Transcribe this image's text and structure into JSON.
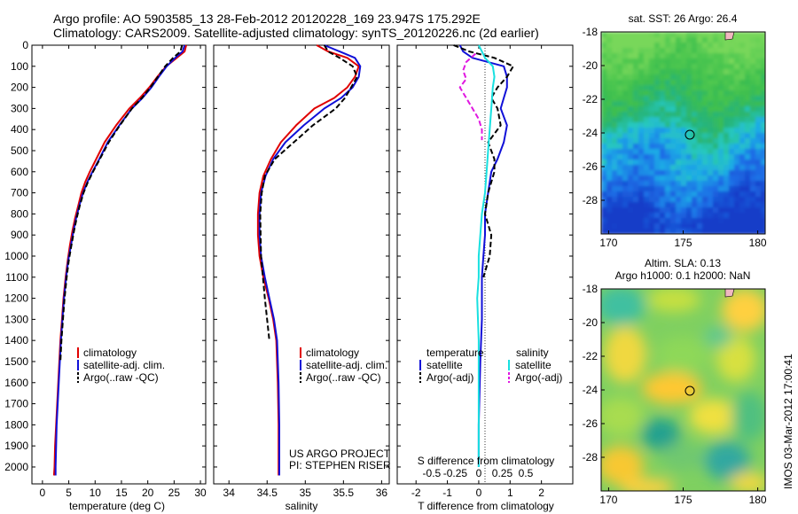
{
  "header": {
    "line1": "Argo profile: AO 5903585_13 28-Feb-2012 20120228_169 23.947S 175.292E",
    "line2": "Climatology: CARS2009. Satellite-adjusted climatology: synTS_20120226.nc (2d earlier)"
  },
  "credit": "US ARGO PROJECT",
  "pi": "PI: STEPHEN RISER",
  "watermark": "IMOS 03-Mar-2012 17:00:41",
  "colors": {
    "climatology": "#e00000",
    "satellite": "#1010d8",
    "argo": "#000000",
    "sat_salinity": "#18e0e0",
    "argo_salinity": "#e018e0"
  },
  "chart_data": [
    {
      "type": "line",
      "name": "temperature-profile",
      "xlabel": "temperature (deg C)",
      "ylabel": "depth",
      "xlim": [
        -2,
        31
      ],
      "ylim": [
        2080,
        0
      ],
      "xticks": [
        0,
        5,
        10,
        15,
        20,
        25,
        30
      ],
      "yticks": [
        0,
        100,
        200,
        300,
        400,
        500,
        600,
        700,
        800,
        900,
        1000,
        1100,
        1200,
        1300,
        1400,
        1500,
        1600,
        1700,
        1800,
        1900,
        2000
      ],
      "legend": [
        "climatology",
        "satellite-adj. clim.",
        "Argo(..raw -QC)"
      ],
      "series": [
        {
          "name": "climatology",
          "color": "#e00000",
          "dash": "",
          "x": [
            27.3,
            27.0,
            25.5,
            23.5,
            21.8,
            20.3,
            18.5,
            16.5,
            14.0,
            11.8,
            10.2,
            9.0,
            8.1,
            7.4,
            6.8,
            6.2,
            5.7,
            5.2,
            4.8,
            4.4,
            4.0,
            3.7,
            3.4,
            3.2,
            3.0,
            2.8,
            2.6,
            2.4,
            2.3,
            2.2
          ],
          "y": [
            0,
            30,
            60,
            100,
            150,
            200,
            250,
            300,
            380,
            460,
            540,
            600,
            650,
            700,
            760,
            820,
            880,
            950,
            1020,
            1100,
            1200,
            1300,
            1400,
            1500,
            1600,
            1700,
            1800,
            1900,
            2000,
            2040
          ]
        },
        {
          "name": "satellite-adj. clim.",
          "color": "#1010d8",
          "dash": "",
          "x": [
            27.0,
            26.6,
            25.2,
            23.6,
            22.1,
            20.7,
            19.0,
            17.0,
            14.6,
            12.4,
            10.8,
            9.5,
            8.5,
            7.7,
            7.0,
            6.4,
            5.9,
            5.4,
            4.9,
            4.5,
            4.1,
            3.8,
            3.5,
            3.3,
            3.1,
            2.9,
            2.7,
            2.6,
            2.5,
            2.5
          ],
          "y": [
            0,
            30,
            60,
            100,
            150,
            200,
            250,
            300,
            380,
            460,
            540,
            600,
            650,
            700,
            760,
            820,
            880,
            950,
            1020,
            1100,
            1200,
            1300,
            1400,
            1500,
            1600,
            1700,
            1800,
            1900,
            2000,
            2040
          ]
        },
        {
          "name": "Argo(..raw -QC)",
          "color": "#000000",
          "dash": "6,3",
          "x": [
            26.5,
            26.2,
            24.8,
            23.3,
            21.9,
            20.5,
            18.9,
            17.0,
            14.7,
            12.6,
            10.9,
            9.6,
            8.6,
            7.8,
            7.1,
            6.5,
            6.0,
            5.5,
            5.0,
            4.6,
            4.2,
            3.9,
            3.6,
            3.4
          ],
          "y": [
            0,
            30,
            60,
            100,
            150,
            200,
            250,
            300,
            380,
            460,
            540,
            600,
            650,
            700,
            760,
            820,
            880,
            950,
            1020,
            1100,
            1200,
            1300,
            1400,
            1500
          ]
        }
      ]
    },
    {
      "type": "line",
      "name": "salinity-profile",
      "xlabel": "salinity",
      "ylabel": "depth",
      "xlim": [
        33.8,
        36.1
      ],
      "ylim": [
        2080,
        0
      ],
      "xticks": [
        34,
        34.5,
        35,
        35.5,
        36
      ],
      "legend": [
        "climatology",
        "satellite-adj. clim.",
        "Argo(..raw -QC)"
      ],
      "series": [
        {
          "name": "climatology",
          "color": "#e00000",
          "dash": "",
          "x": [
            35.15,
            35.3,
            35.55,
            35.7,
            35.65,
            35.55,
            35.38,
            35.12,
            34.88,
            34.68,
            34.55,
            34.45,
            34.4,
            34.38,
            34.38,
            34.4,
            34.45,
            34.52,
            34.58,
            34.62,
            34.64,
            34.65,
            34.65
          ],
          "y": [
            0,
            30,
            60,
            100,
            150,
            200,
            250,
            300,
            380,
            460,
            540,
            620,
            700,
            800,
            900,
            1000,
            1100,
            1200,
            1300,
            1400,
            1600,
            1800,
            2040
          ]
        },
        {
          "name": "satellite-adj. clim.",
          "color": "#1010d8",
          "dash": "",
          "x": [
            35.25,
            35.45,
            35.65,
            35.72,
            35.7,
            35.62,
            35.47,
            35.25,
            34.98,
            34.74,
            34.58,
            34.48,
            34.42,
            34.4,
            34.4,
            34.42,
            34.47,
            34.53,
            34.59,
            34.63,
            34.65,
            34.66,
            34.66
          ],
          "y": [
            0,
            30,
            60,
            100,
            150,
            200,
            250,
            300,
            380,
            460,
            540,
            620,
            700,
            800,
            900,
            1000,
            1100,
            1200,
            1300,
            1400,
            1600,
            1800,
            2040
          ]
        },
        {
          "name": "Argo(..raw -QC)",
          "color": "#000000",
          "dash": "6,3",
          "x": [
            35.25,
            35.3,
            35.45,
            35.62,
            35.68,
            35.6,
            35.52,
            35.4,
            35.1,
            34.85,
            34.6,
            34.47,
            34.43,
            34.41,
            34.42,
            34.47,
            34.53
          ],
          "y": [
            0,
            30,
            60,
            100,
            150,
            200,
            250,
            300,
            380,
            460,
            540,
            620,
            700,
            800,
            1000,
            1200,
            1400
          ]
        }
      ]
    },
    {
      "type": "line",
      "name": "difference-profile",
      "xlabel": "T difference from climatology",
      "xlabel_top": "S difference from climatology",
      "ylabel": "depth",
      "xlim": [
        -2.6,
        3.0
      ],
      "ylim": [
        2080,
        0
      ],
      "xticks": [
        -2,
        -1,
        0,
        1,
        2
      ],
      "xticks_top": [
        -0.5,
        -0.25,
        0,
        0.25,
        0.5
      ],
      "legend_headers": [
        "temperature",
        "salinity"
      ],
      "legend": [
        "satellite",
        "Argo(-adj)",
        "satellite",
        "Argo(-adj)"
      ],
      "series": [
        {
          "name": "temperature satellite",
          "color": "#1010d8",
          "dash": "",
          "x": [
            -0.6,
            -0.5,
            -0.2,
            0.8,
            0.9,
            0.9,
            0.8,
            0.7,
            0.9,
            0.8,
            0.6,
            0.4,
            0.3,
            0.2,
            0.2,
            0.15,
            0.1,
            0.1,
            0.05,
            0.0,
            0.0
          ],
          "y": [
            0,
            30,
            60,
            100,
            150,
            200,
            250,
            300,
            380,
            460,
            540,
            600,
            700,
            800,
            900,
            1000,
            1100,
            1300,
            1500,
            1800,
            2000
          ]
        },
        {
          "name": "temperature Argo(-adj)",
          "color": "#000000",
          "dash": "6,3",
          "x": [
            -0.8,
            -0.3,
            0.5,
            1.1,
            0.9,
            0.6,
            0.4,
            0.6,
            0.7,
            0.3,
            0.5,
            0.5,
            0.3,
            0.2,
            0.4,
            0.35,
            0.15
          ],
          "y": [
            0,
            30,
            60,
            100,
            150,
            200,
            250,
            300,
            380,
            460,
            540,
            600,
            700,
            800,
            900,
            1000,
            1100
          ]
        },
        {
          "name": "salinity satellite",
          "color": "#18e0e0",
          "dash": "",
          "x": [
            0.0,
            0.1,
            0.2,
            0.45,
            0.5,
            0.45,
            0.4,
            0.35,
            0.3,
            0.25,
            0.2,
            0.1,
            0.05,
            0.0,
            0.0,
            -0.05,
            0.0,
            0.0,
            0.0
          ],
          "y": [
            0,
            30,
            60,
            100,
            150,
            200,
            300,
            400,
            500,
            600,
            700,
            800,
            900,
            1000,
            1100,
            1200,
            1400,
            1700,
            2000
          ]
        },
        {
          "name": "salinity Argo(-adj)",
          "color": "#e018e0",
          "dash": "6,3",
          "x": [
            -0.1,
            -0.4,
            -0.5,
            -0.4,
            -0.6,
            -0.4,
            -0.2,
            0.0,
            0.1,
            0.1
          ],
          "y": [
            40,
            80,
            120,
            160,
            200,
            250,
            300,
            350,
            400,
            450
          ]
        }
      ]
    },
    {
      "type": "heatmap",
      "name": "sst-map",
      "title": "sat. SST: 26  Argo: 26.4",
      "xticks": [
        170,
        175,
        180
      ],
      "yticks": [
        -18,
        -20,
        -22,
        -24,
        -26,
        -28
      ],
      "xlim": [
        169.5,
        180.5
      ],
      "ylim": [
        -30,
        -18
      ],
      "marker": {
        "lon": 175.292,
        "lat": -23.947
      }
    },
    {
      "type": "heatmap",
      "name": "sla-map",
      "title_line1": "Altim. SLA: 0.13",
      "title_line2": "Argo h1000: 0.1  h2000: NaN",
      "xticks": [
        170,
        175,
        180
      ],
      "yticks": [
        -18,
        -20,
        -22,
        -24,
        -26,
        -28
      ],
      "xlim": [
        169.5,
        180.5
      ],
      "ylim": [
        -30,
        -18
      ],
      "marker": {
        "lon": 175.292,
        "lat": -23.947
      }
    }
  ]
}
